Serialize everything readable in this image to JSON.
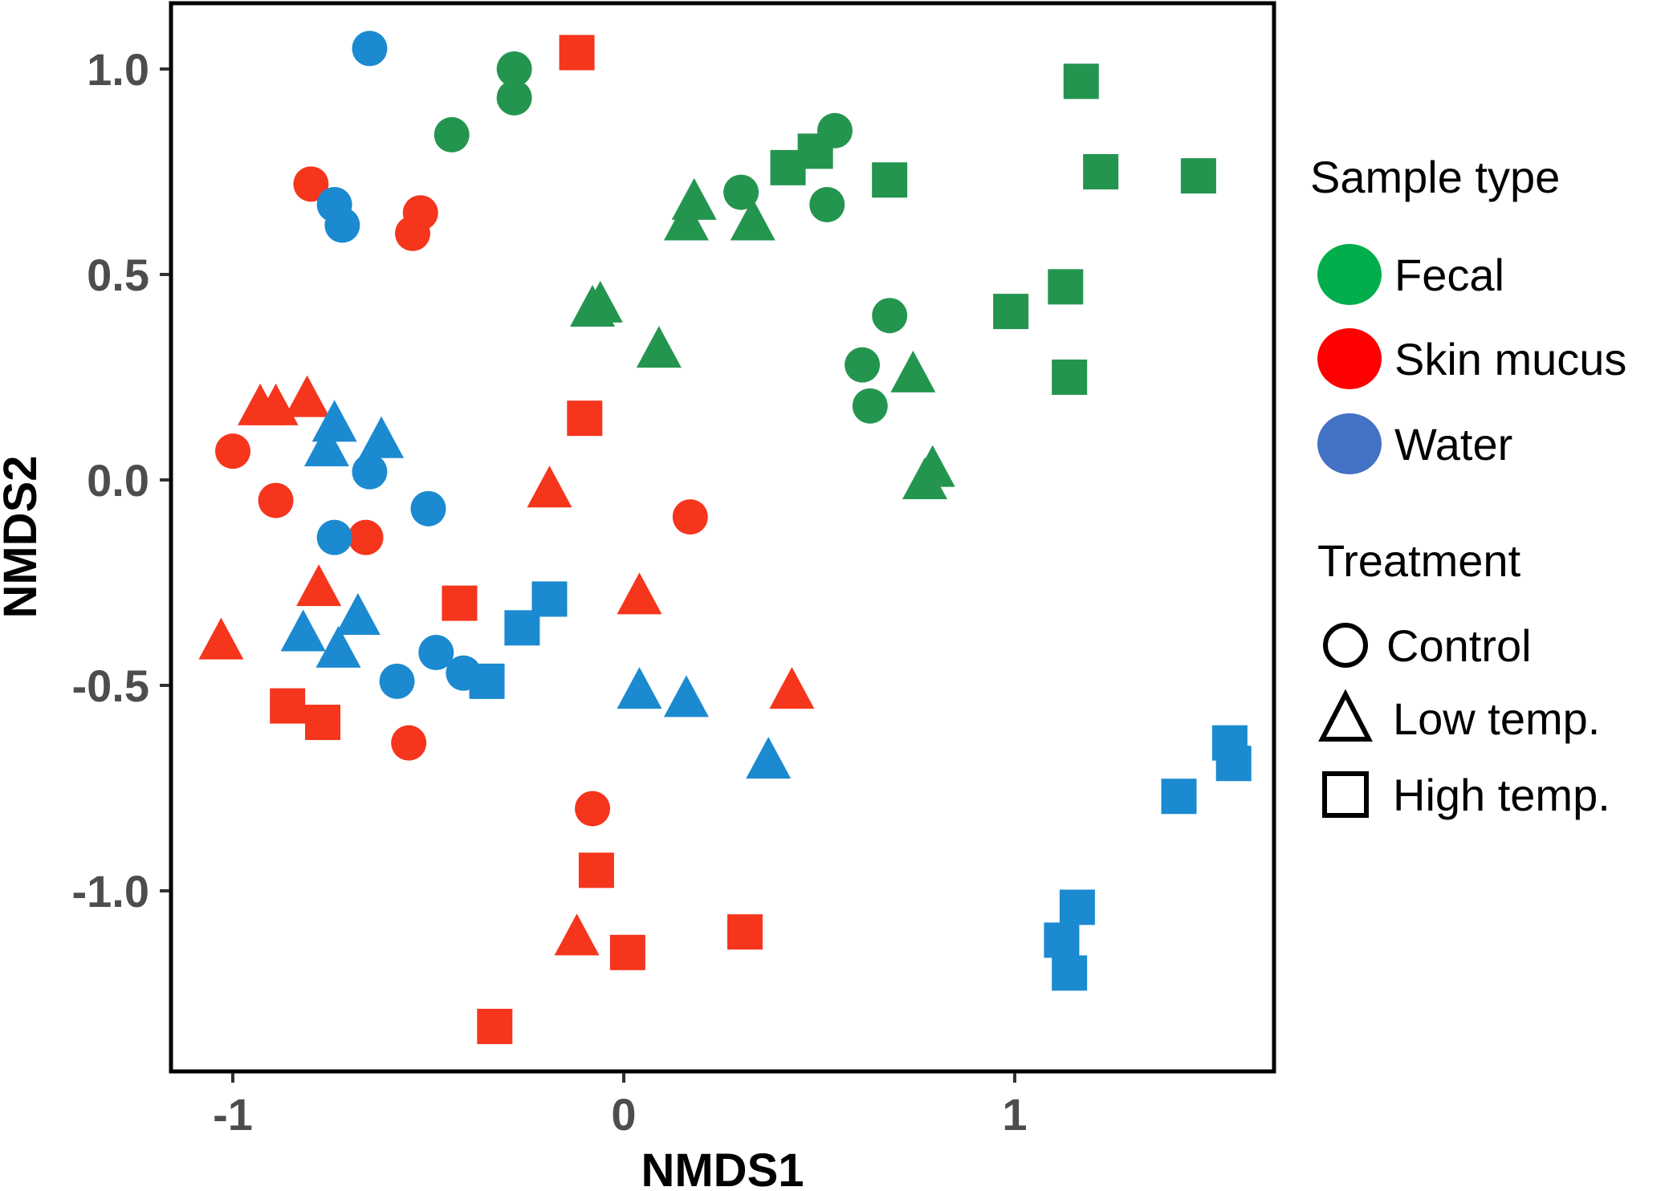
{
  "chart_data": {
    "type": "scatter",
    "title": "",
    "xlabel": "NMDS1",
    "ylabel": "NMDS2",
    "xlim": [
      -1.15,
      1.67
    ],
    "ylim": [
      -1.44,
      1.17
    ],
    "xticks": [
      -1,
      0,
      1
    ],
    "xtick_labels": [
      "-1",
      "0",
      "1"
    ],
    "yticks": [
      1.0,
      0.5,
      0.0,
      -0.5,
      -1.0
    ],
    "ytick_labels": [
      "1.0",
      "0.5",
      "0.0",
      "-0.5",
      "-1.0"
    ],
    "grid": false,
    "legend_position": "right",
    "legend": {
      "color_title": "Sample type",
      "color_entries": [
        {
          "key": "fecal",
          "label": "Fecal"
        },
        {
          "key": "skin",
          "label": "Skin mucus"
        },
        {
          "key": "water",
          "label": "Water"
        }
      ],
      "shape_title": "Treatment",
      "shape_entries": [
        {
          "key": "control",
          "label": "Control"
        },
        {
          "key": "low",
          "label": "Low temp."
        },
        {
          "key": "high",
          "label": "High temp."
        }
      ]
    },
    "colors": {
      "fecal": "#24954f",
      "skin": "#f5351c",
      "water": "#1b8ad0"
    },
    "legend_colors": {
      "fecal": "#02ae4c",
      "skin": "#ff0000",
      "water": "#4472c4"
    },
    "series": [
      {
        "name": "Fecal - Control",
        "sample": "fecal",
        "treatment": "control",
        "points": [
          [
            -0.28,
            1.0
          ],
          [
            -0.28,
            0.93
          ],
          [
            -0.44,
            0.84
          ],
          [
            0.3,
            0.7
          ],
          [
            0.52,
            0.67
          ],
          [
            0.54,
            0.85
          ],
          [
            0.68,
            0.4
          ],
          [
            0.61,
            0.28
          ],
          [
            0.63,
            0.18
          ]
        ]
      },
      {
        "name": "Fecal - Low temp.",
        "sample": "fecal",
        "treatment": "low",
        "points": [
          [
            0.18,
            0.68
          ],
          [
            0.16,
            0.63
          ],
          [
            0.33,
            0.63
          ],
          [
            -0.08,
            0.42
          ],
          [
            -0.06,
            0.43
          ],
          [
            0.09,
            0.32
          ],
          [
            0.74,
            0.26
          ],
          [
            0.79,
            0.03
          ],
          [
            0.77,
            0.0
          ]
        ]
      },
      {
        "name": "Fecal - High temp.",
        "sample": "fecal",
        "treatment": "high",
        "points": [
          [
            0.42,
            0.76
          ],
          [
            0.49,
            0.8
          ],
          [
            0.68,
            0.73
          ],
          [
            1.17,
            0.97
          ],
          [
            1.22,
            0.75
          ],
          [
            1.47,
            0.74
          ],
          [
            0.99,
            0.41
          ],
          [
            1.13,
            0.47
          ],
          [
            1.14,
            0.25
          ]
        ]
      },
      {
        "name": "Skin mucus - Control",
        "sample": "skin",
        "treatment": "control",
        "points": [
          [
            -0.8,
            0.72
          ],
          [
            -0.52,
            0.65
          ],
          [
            -0.54,
            0.6
          ],
          [
            -1.0,
            0.07
          ],
          [
            -0.89,
            -0.05
          ],
          [
            -0.66,
            -0.14
          ],
          [
            0.17,
            -0.09
          ],
          [
            -0.55,
            -0.64
          ],
          [
            -0.08,
            -0.8
          ]
        ]
      },
      {
        "name": "Skin mucus - Low temp.",
        "sample": "skin",
        "treatment": "low",
        "points": [
          [
            -0.93,
            0.18
          ],
          [
            -0.89,
            0.18
          ],
          [
            -0.81,
            0.2
          ],
          [
            -0.19,
            -0.02
          ],
          [
            -0.78,
            -0.26
          ],
          [
            -1.03,
            -0.39
          ],
          [
            0.04,
            -0.28
          ],
          [
            0.43,
            -0.51
          ],
          [
            -0.12,
            -1.11
          ]
        ]
      },
      {
        "name": "Skin mucus - High temp.",
        "sample": "skin",
        "treatment": "high",
        "points": [
          [
            -0.12,
            1.04
          ],
          [
            -0.1,
            0.15
          ],
          [
            -0.42,
            -0.3
          ],
          [
            -0.86,
            -0.55
          ],
          [
            -0.77,
            -0.59
          ],
          [
            -0.07,
            -0.95
          ],
          [
            0.01,
            -1.15
          ],
          [
            0.31,
            -1.1
          ],
          [
            -0.33,
            -1.33
          ]
        ]
      },
      {
        "name": "Water - Control",
        "sample": "water",
        "treatment": "control",
        "points": [
          [
            -0.65,
            1.05
          ],
          [
            -0.74,
            0.67
          ],
          [
            -0.72,
            0.62
          ],
          [
            -0.65,
            0.02
          ],
          [
            -0.5,
            -0.07
          ],
          [
            -0.74,
            -0.14
          ],
          [
            -0.48,
            -0.42
          ],
          [
            -0.41,
            -0.47
          ],
          [
            -0.58,
            -0.49
          ]
        ]
      },
      {
        "name": "Water - Low temp.",
        "sample": "water",
        "treatment": "low",
        "points": [
          [
            -0.74,
            0.14
          ],
          [
            -0.76,
            0.08
          ],
          [
            -0.62,
            0.1
          ],
          [
            -0.82,
            -0.37
          ],
          [
            -0.68,
            -0.33
          ],
          [
            -0.73,
            -0.41
          ],
          [
            0.04,
            -0.51
          ],
          [
            0.16,
            -0.53
          ],
          [
            0.37,
            -0.68
          ]
        ]
      },
      {
        "name": "Water - High temp.",
        "sample": "water",
        "treatment": "high",
        "points": [
          [
            -0.35,
            -0.49
          ],
          [
            -0.26,
            -0.36
          ],
          [
            -0.19,
            -0.29
          ],
          [
            1.42,
            -0.77
          ],
          [
            1.55,
            -0.64
          ],
          [
            1.56,
            -0.69
          ],
          [
            1.16,
            -1.04
          ],
          [
            1.12,
            -1.12
          ],
          [
            1.14,
            -1.2
          ]
        ]
      }
    ]
  }
}
